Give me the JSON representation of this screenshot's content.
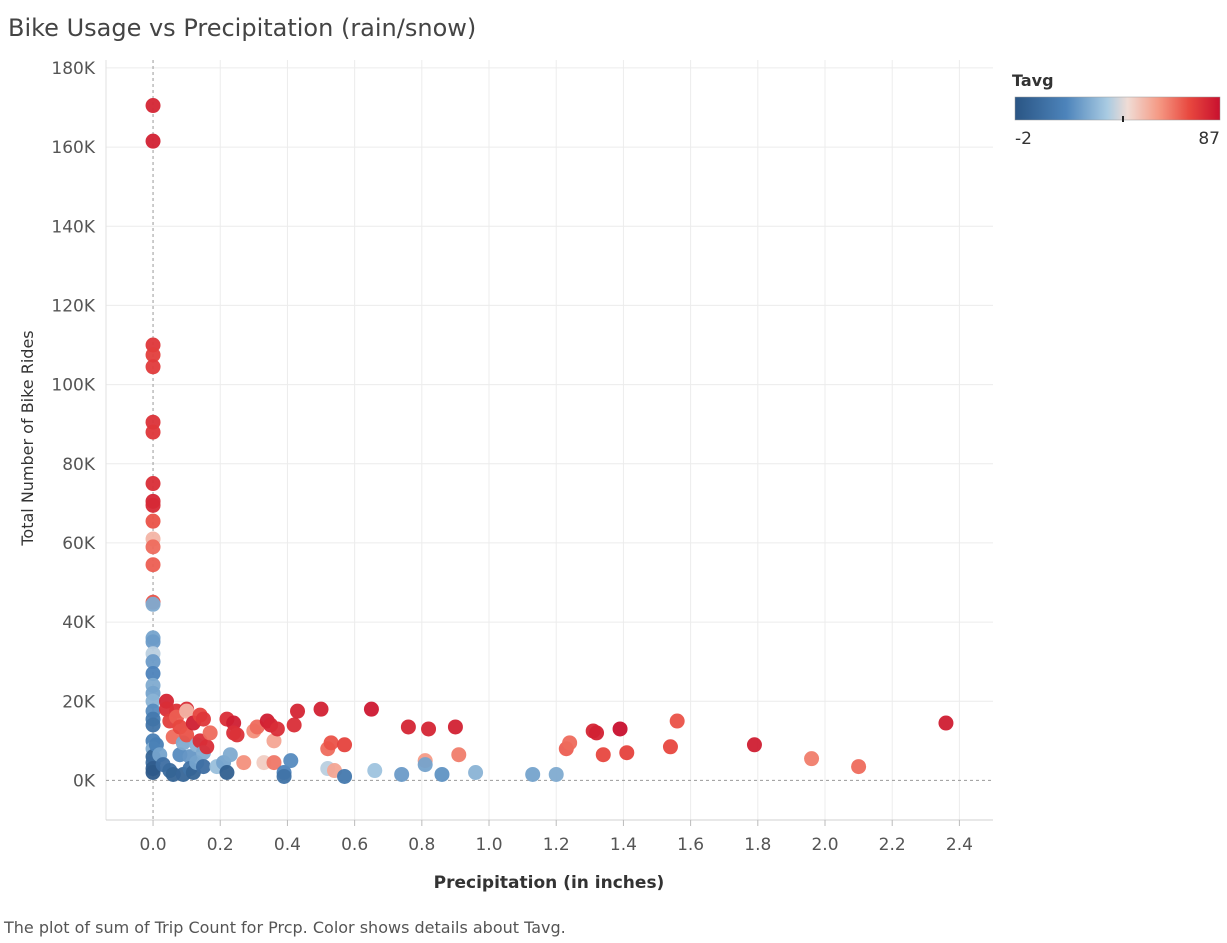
{
  "chart_data": {
    "type": "scatter",
    "title": "Bike Usage vs Precipitation (rain/snow)",
    "xlabel": "Precipitation (in inches)",
    "ylabel": "Total Number of Bike Rides",
    "xlim": [
      -0.14,
      2.5
    ],
    "ylim": [
      -10000,
      182000
    ],
    "xticks": [
      0.0,
      0.2,
      0.4,
      0.6,
      0.8,
      1.0,
      1.2,
      1.4,
      1.6,
      1.8,
      2.0,
      2.2,
      2.4
    ],
    "xtick_labels": [
      "0.0",
      "0.2",
      "0.4",
      "0.6",
      "0.8",
      "1.0",
      "1.2",
      "1.4",
      "1.6",
      "1.8",
      "2.0",
      "2.2",
      "2.4"
    ],
    "yticks": [
      0,
      20000,
      40000,
      60000,
      80000,
      100000,
      120000,
      140000,
      160000,
      180000
    ],
    "ytick_labels": [
      "0K",
      "20K",
      "40K",
      "60K",
      "80K",
      "100K",
      "120K",
      "140K",
      "160K",
      "180K"
    ],
    "grid": true,
    "color_legend": {
      "title": "Tavg",
      "min_label": "-2",
      "max_label": "87",
      "min": -2,
      "max": 87,
      "placement": "top-right"
    },
    "caption": "The plot of sum of Trip Count for Prcp.  Color shows details about Tavg.",
    "points": [
      {
        "x": 0.0,
        "y": 170500,
        "t": 82
      },
      {
        "x": 0.0,
        "y": 161500,
        "t": 83
      },
      {
        "x": 0.0,
        "y": 110000,
        "t": 78
      },
      {
        "x": 0.0,
        "y": 107500,
        "t": 76
      },
      {
        "x": 0.0,
        "y": 104500,
        "t": 77
      },
      {
        "x": 0.0,
        "y": 90500,
        "t": 79
      },
      {
        "x": 0.0,
        "y": 88000,
        "t": 78
      },
      {
        "x": 0.0,
        "y": 75000,
        "t": 80
      },
      {
        "x": 0.0,
        "y": 70500,
        "t": 82
      },
      {
        "x": 0.0,
        "y": 69500,
        "t": 81
      },
      {
        "x": 0.0,
        "y": 65500,
        "t": 72
      },
      {
        "x": 0.0,
        "y": 61000,
        "t": 55
      },
      {
        "x": 0.0,
        "y": 59000,
        "t": 68
      },
      {
        "x": 0.0,
        "y": 54500,
        "t": 70
      },
      {
        "x": 0.0,
        "y": 45000,
        "t": 72
      },
      {
        "x": 0.0,
        "y": 44500,
        "t": 30
      },
      {
        "x": 0.0,
        "y": 36000,
        "t": 28
      },
      {
        "x": 0.0,
        "y": 35000,
        "t": 26
      },
      {
        "x": 0.0,
        "y": 32000,
        "t": 40
      },
      {
        "x": 0.0,
        "y": 30000,
        "t": 26
      },
      {
        "x": 0.0,
        "y": 27000,
        "t": 20
      },
      {
        "x": 0.0,
        "y": 24000,
        "t": 30
      },
      {
        "x": 0.0,
        "y": 22000,
        "t": 28
      },
      {
        "x": 0.0,
        "y": 20000,
        "t": 32
      },
      {
        "x": 0.0,
        "y": 17500,
        "t": 22
      },
      {
        "x": 0.0,
        "y": 15500,
        "t": 15
      },
      {
        "x": 0.0,
        "y": 14000,
        "t": 12
      },
      {
        "x": 0.0,
        "y": 10000,
        "t": 18
      },
      {
        "x": 0.0,
        "y": 8000,
        "t": 30
      },
      {
        "x": 0.0,
        "y": 6000,
        "t": 5
      },
      {
        "x": 0.0,
        "y": 4500,
        "t": 8
      },
      {
        "x": 0.0,
        "y": 3000,
        "t": 2
      },
      {
        "x": 0.0,
        "y": 2000,
        "t": 0
      },
      {
        "x": 0.01,
        "y": 9000,
        "t": 18
      },
      {
        "x": 0.02,
        "y": 6500,
        "t": 28
      },
      {
        "x": 0.03,
        "y": 4000,
        "t": 10
      },
      {
        "x": 0.04,
        "y": 20000,
        "t": 82
      },
      {
        "x": 0.04,
        "y": 18000,
        "t": 80
      },
      {
        "x": 0.05,
        "y": 15000,
        "t": 76
      },
      {
        "x": 0.05,
        "y": 2500,
        "t": 8
      },
      {
        "x": 0.06,
        "y": 1500,
        "t": 5
      },
      {
        "x": 0.06,
        "y": 11000,
        "t": 68
      },
      {
        "x": 0.07,
        "y": 17500,
        "t": 79
      },
      {
        "x": 0.07,
        "y": 16000,
        "t": 70
      },
      {
        "x": 0.08,
        "y": 13500,
        "t": 74
      },
      {
        "x": 0.08,
        "y": 6500,
        "t": 22
      },
      {
        "x": 0.09,
        "y": 9500,
        "t": 30
      },
      {
        "x": 0.09,
        "y": 1500,
        "t": 6
      },
      {
        "x": 0.1,
        "y": 18000,
        "t": 80
      },
      {
        "x": 0.1,
        "y": 17500,
        "t": 55
      },
      {
        "x": 0.1,
        "y": 11500,
        "t": 72
      },
      {
        "x": 0.11,
        "y": 6000,
        "t": 25
      },
      {
        "x": 0.11,
        "y": 3000,
        "t": 12
      },
      {
        "x": 0.12,
        "y": 14500,
        "t": 84
      },
      {
        "x": 0.12,
        "y": 2000,
        "t": 5
      },
      {
        "x": 0.13,
        "y": 9000,
        "t": 32
      },
      {
        "x": 0.13,
        "y": 4500,
        "t": 28
      },
      {
        "x": 0.14,
        "y": 16500,
        "t": 75
      },
      {
        "x": 0.14,
        "y": 10000,
        "t": 80
      },
      {
        "x": 0.15,
        "y": 15500,
        "t": 78
      },
      {
        "x": 0.15,
        "y": 7000,
        "t": 30
      },
      {
        "x": 0.15,
        "y": 3500,
        "t": 10
      },
      {
        "x": 0.16,
        "y": 8500,
        "t": 80
      },
      {
        "x": 0.17,
        "y": 12000,
        "t": 68
      },
      {
        "x": 0.19,
        "y": 3500,
        "t": 35
      },
      {
        "x": 0.21,
        "y": 4500,
        "t": 28
      },
      {
        "x": 0.22,
        "y": 15500,
        "t": 80
      },
      {
        "x": 0.22,
        "y": 2000,
        "t": 3
      },
      {
        "x": 0.23,
        "y": 6500,
        "t": 30
      },
      {
        "x": 0.24,
        "y": 14500,
        "t": 84
      },
      {
        "x": 0.24,
        "y": 12000,
        "t": 80
      },
      {
        "x": 0.25,
        "y": 11500,
        "t": 79
      },
      {
        "x": 0.27,
        "y": 4500,
        "t": 62
      },
      {
        "x": 0.3,
        "y": 12500,
        "t": 62
      },
      {
        "x": 0.31,
        "y": 13500,
        "t": 68
      },
      {
        "x": 0.33,
        "y": 4500,
        "t": 50
      },
      {
        "x": 0.34,
        "y": 15000,
        "t": 84
      },
      {
        "x": 0.35,
        "y": 14000,
        "t": 82
      },
      {
        "x": 0.36,
        "y": 10000,
        "t": 58
      },
      {
        "x": 0.36,
        "y": 4500,
        "t": 66
      },
      {
        "x": 0.37,
        "y": 13000,
        "t": 80
      },
      {
        "x": 0.39,
        "y": 2000,
        "t": 20
      },
      {
        "x": 0.39,
        "y": 1000,
        "t": 12
      },
      {
        "x": 0.41,
        "y": 5000,
        "t": 22
      },
      {
        "x": 0.42,
        "y": 14000,
        "t": 80
      },
      {
        "x": 0.43,
        "y": 17500,
        "t": 82
      },
      {
        "x": 0.5,
        "y": 18000,
        "t": 83
      },
      {
        "x": 0.52,
        "y": 8000,
        "t": 68
      },
      {
        "x": 0.52,
        "y": 3000,
        "t": 40
      },
      {
        "x": 0.53,
        "y": 9500,
        "t": 72
      },
      {
        "x": 0.54,
        "y": 2500,
        "t": 58
      },
      {
        "x": 0.57,
        "y": 9000,
        "t": 75
      },
      {
        "x": 0.57,
        "y": 1000,
        "t": 15
      },
      {
        "x": 0.65,
        "y": 18000,
        "t": 85
      },
      {
        "x": 0.66,
        "y": 2500,
        "t": 36
      },
      {
        "x": 0.74,
        "y": 1500,
        "t": 26
      },
      {
        "x": 0.76,
        "y": 13500,
        "t": 82
      },
      {
        "x": 0.81,
        "y": 5000,
        "t": 60
      },
      {
        "x": 0.81,
        "y": 4000,
        "t": 28
      },
      {
        "x": 0.82,
        "y": 13000,
        "t": 82
      },
      {
        "x": 0.86,
        "y": 1500,
        "t": 24
      },
      {
        "x": 0.9,
        "y": 13500,
        "t": 83
      },
      {
        "x": 0.91,
        "y": 6500,
        "t": 65
      },
      {
        "x": 0.96,
        "y": 2000,
        "t": 32
      },
      {
        "x": 1.13,
        "y": 1500,
        "t": 28
      },
      {
        "x": 1.2,
        "y": 1500,
        "t": 30
      },
      {
        "x": 1.23,
        "y": 8000,
        "t": 70
      },
      {
        "x": 1.24,
        "y": 9500,
        "t": 68
      },
      {
        "x": 1.31,
        "y": 12500,
        "t": 82
      },
      {
        "x": 1.32,
        "y": 12000,
        "t": 83
      },
      {
        "x": 1.34,
        "y": 6500,
        "t": 74
      },
      {
        "x": 1.39,
        "y": 13000,
        "t": 87
      },
      {
        "x": 1.41,
        "y": 7000,
        "t": 75
      },
      {
        "x": 1.54,
        "y": 8500,
        "t": 74
      },
      {
        "x": 1.56,
        "y": 15000,
        "t": 72
      },
      {
        "x": 1.79,
        "y": 9000,
        "t": 84
      },
      {
        "x": 1.96,
        "y": 5500,
        "t": 65
      },
      {
        "x": 2.1,
        "y": 3500,
        "t": 68
      },
      {
        "x": 2.36,
        "y": 14500,
        "t": 84
      }
    ]
  }
}
